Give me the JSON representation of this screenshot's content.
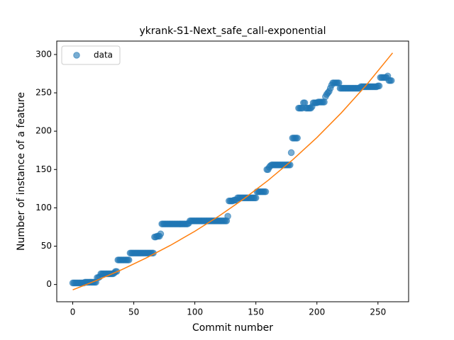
{
  "chart_data": {
    "type": "scatter",
    "title": "ykrank-S1-Next_safe_call-exponential",
    "xlabel": "Commit number",
    "ylabel": "Number of instance of a feature",
    "xlim": [
      -13.1,
      275.1
    ],
    "ylim": [
      -22.5,
      317.5
    ],
    "xticks": [
      0,
      50,
      100,
      150,
      200,
      250
    ],
    "yticks": [
      0,
      50,
      100,
      150,
      200,
      250,
      300
    ],
    "legend": "upper left",
    "series": [
      {
        "name": "data",
        "type": "scatter",
        "color": "#1f77b4",
        "x": [
          0,
          1,
          2,
          3,
          4,
          5,
          6,
          7,
          8,
          9,
          10,
          11,
          12,
          13,
          14,
          15,
          16,
          17,
          18,
          19,
          20,
          21,
          22,
          23,
          24,
          25,
          26,
          27,
          28,
          29,
          30,
          31,
          32,
          33,
          34,
          35,
          36,
          37,
          38,
          39,
          40,
          41,
          42,
          43,
          44,
          45,
          46,
          47,
          48,
          49,
          50,
          51,
          52,
          53,
          54,
          55,
          56,
          57,
          58,
          59,
          60,
          61,
          62,
          63,
          64,
          65,
          66,
          67,
          68,
          69,
          70,
          71,
          72,
          73,
          74,
          75,
          76,
          77,
          78,
          79,
          80,
          81,
          82,
          83,
          84,
          85,
          86,
          87,
          88,
          89,
          90,
          91,
          92,
          93,
          94,
          95,
          96,
          97,
          98,
          99,
          100,
          101,
          102,
          103,
          104,
          105,
          106,
          107,
          108,
          109,
          110,
          111,
          112,
          113,
          114,
          115,
          116,
          117,
          118,
          119,
          120,
          121,
          122,
          123,
          124,
          125,
          126,
          127,
          128,
          129,
          130,
          131,
          132,
          133,
          134,
          135,
          136,
          137,
          138,
          139,
          140,
          141,
          142,
          143,
          144,
          145,
          146,
          147,
          148,
          149,
          150,
          151,
          152,
          153,
          154,
          155,
          156,
          157,
          158,
          159,
          160,
          161,
          162,
          163,
          164,
          165,
          166,
          167,
          168,
          169,
          170,
          171,
          172,
          173,
          174,
          175,
          176,
          177,
          178,
          179,
          180,
          181,
          182,
          183,
          184,
          185,
          186,
          187,
          188,
          189,
          190,
          191,
          192,
          193,
          194,
          195,
          196,
          197,
          198,
          199,
          200,
          201,
          202,
          203,
          204,
          205,
          206,
          207,
          208,
          209,
          210,
          211,
          212,
          213,
          214,
          215,
          216,
          217,
          218,
          219,
          220,
          221,
          222,
          223,
          224,
          225,
          226,
          227,
          228,
          229,
          230,
          231,
          232,
          233,
          234,
          235,
          236,
          237,
          238,
          239,
          240,
          241,
          242,
          243,
          244,
          245,
          246,
          247,
          248,
          249,
          250,
          251,
          252,
          253,
          254,
          255,
          256,
          257,
          258,
          259,
          260,
          261
        ],
        "values": [
          2,
          2,
          2,
          2,
          2,
          2,
          2,
          2,
          2,
          2,
          3,
          3,
          3,
          3,
          3,
          3,
          3,
          3,
          3,
          3,
          9,
          9,
          10,
          14,
          14,
          14,
          14,
          14,
          14,
          14,
          14,
          14,
          14,
          14,
          15,
          17,
          17,
          32,
          32,
          32,
          32,
          32,
          32,
          32,
          32,
          32,
          32,
          41,
          41,
          41,
          41,
          41,
          41,
          41,
          41,
          41,
          41,
          41,
          41,
          41,
          41,
          41,
          41,
          41,
          41,
          41,
          41,
          62,
          62,
          63,
          63,
          63,
          66,
          79,
          79,
          79,
          79,
          79,
          79,
          79,
          79,
          79,
          79,
          79,
          79,
          79,
          79,
          79,
          79,
          79,
          79,
          79,
          79,
          79,
          79,
          80,
          83,
          83,
          83,
          83,
          83,
          83,
          83,
          83,
          83,
          83,
          83,
          83,
          83,
          83,
          83,
          83,
          83,
          83,
          83,
          83,
          83,
          83,
          83,
          83,
          83,
          83,
          83,
          83,
          83,
          83,
          83,
          89,
          109,
          109,
          109,
          109,
          110,
          110,
          110,
          113,
          113,
          113,
          113,
          113,
          113,
          113,
          113,
          113,
          113,
          113,
          113,
          113,
          113,
          113,
          113,
          121,
          121,
          121,
          121,
          121,
          121,
          121,
          121,
          150,
          150,
          153,
          155,
          156,
          156,
          156,
          156,
          156,
          156,
          156,
          156,
          156,
          156,
          156,
          156,
          156,
          156,
          156,
          156,
          172,
          191,
          191,
          191,
          191,
          191,
          230,
          230,
          230,
          230,
          237,
          237,
          230,
          230,
          230,
          230,
          230,
          232,
          237,
          237,
          237,
          237,
          238,
          238,
          238,
          238,
          238,
          238,
          245,
          248,
          250,
          252,
          256,
          260,
          263,
          263,
          263,
          263,
          263,
          263,
          256,
          256,
          256,
          256,
          256,
          256,
          256,
          256,
          256,
          256,
          256,
          256,
          256,
          256,
          256,
          256,
          256,
          258,
          258,
          258,
          258,
          258,
          258,
          258,
          258,
          258,
          258,
          258,
          258,
          258,
          258,
          259,
          259,
          270,
          270,
          270,
          270,
          270,
          270,
          272,
          266,
          266,
          266
        ]
      },
      {
        "type": "line",
        "color": "#ff7f0e",
        "x": [
          0,
          20,
          40,
          60,
          80,
          100,
          120,
          140,
          160,
          180,
          200,
          220,
          240,
          262
        ],
        "values": [
          -7,
          5.6,
          19.3,
          34.5,
          51.1,
          69.4,
          89.5,
          111.6,
          135.8,
          162.5,
          191.7,
          223.9,
          259.2,
          302.1
        ]
      }
    ]
  }
}
